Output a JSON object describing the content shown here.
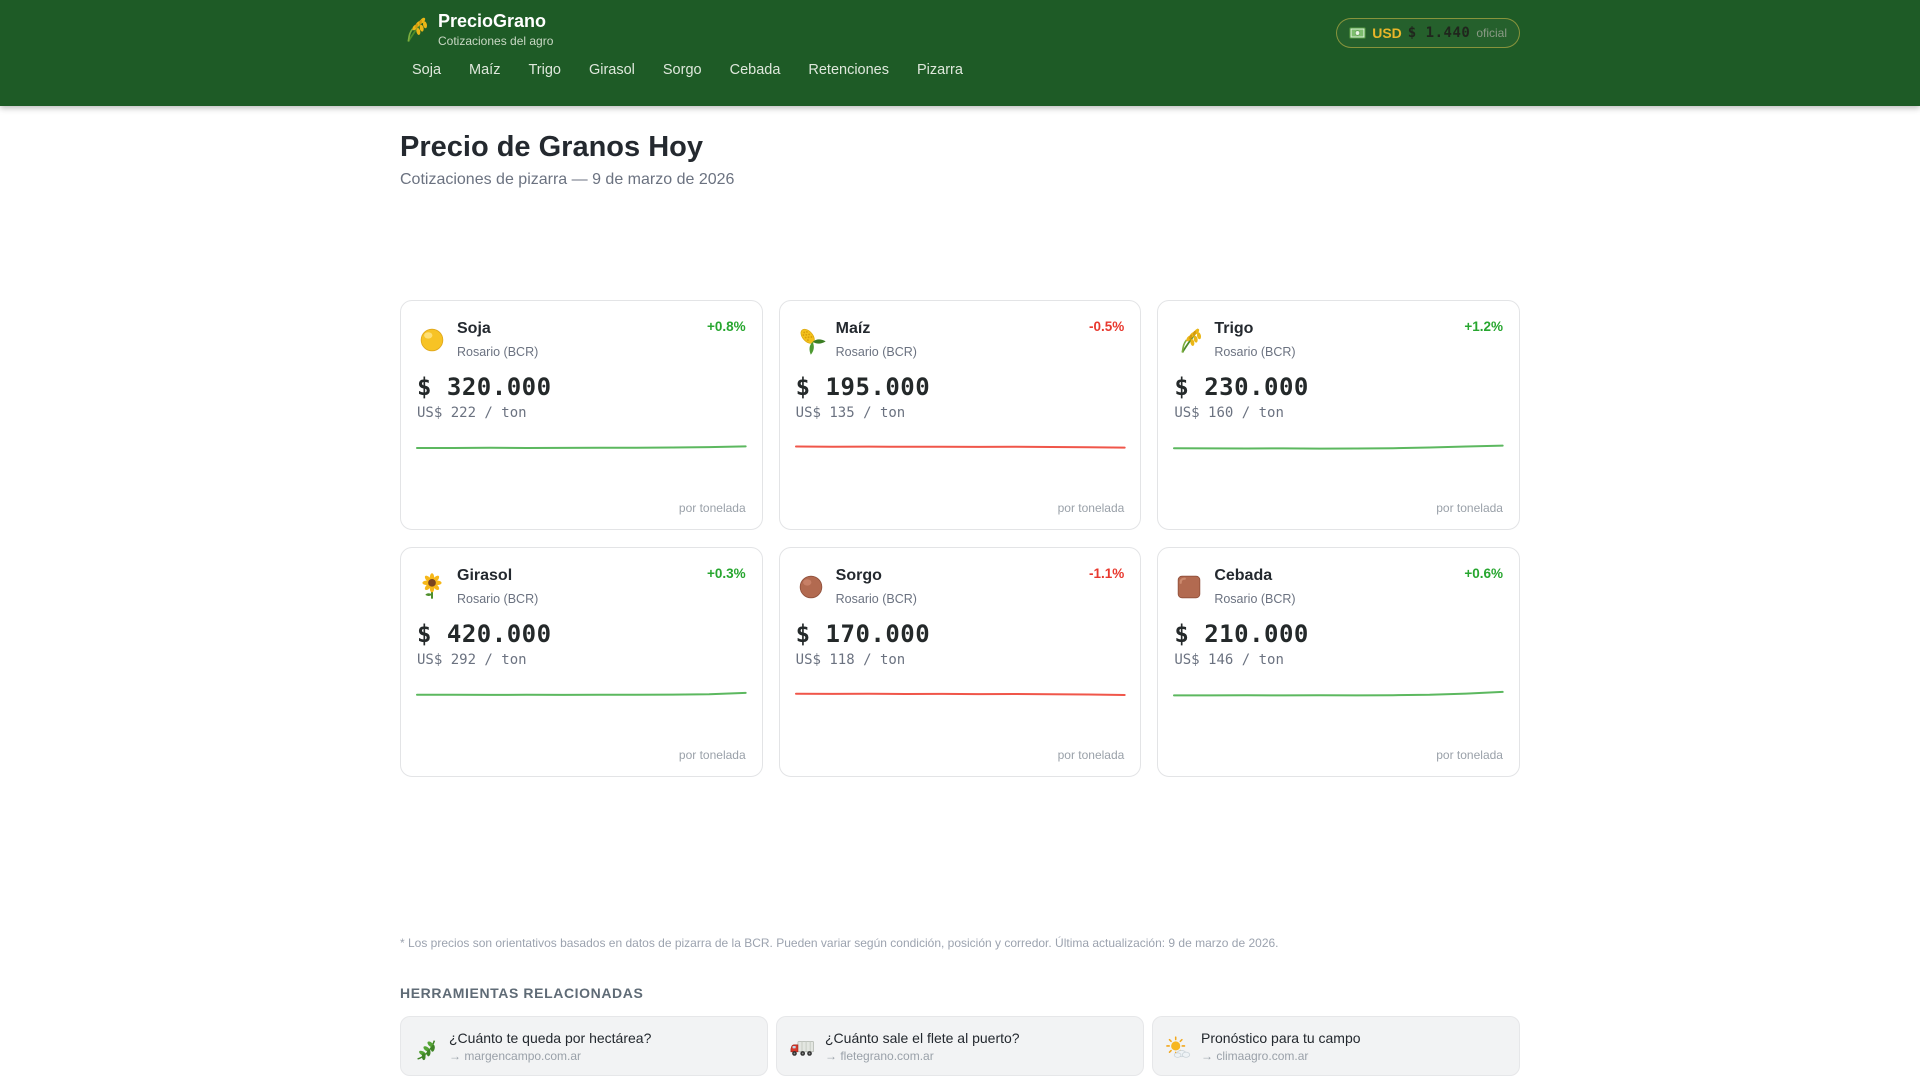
{
  "header": {
    "title": "PrecioGrano",
    "subtitle": "Cotizaciones del agro",
    "nav": [
      "Soja",
      "Maíz",
      "Trigo",
      "Girasol",
      "Sorgo",
      "Cebada",
      "Retenciones",
      "Pizarra"
    ],
    "dollar_badge": {
      "currency": "USD",
      "value": "$ 1.440",
      "tag": "oficial"
    }
  },
  "page": {
    "title": "Precio de Granos Hoy",
    "subtitle": "Cotizaciones de pizarra — 9 de marzo de 2026",
    "disclaimer": "* Los precios son orientativos basados en datos de pizarra de la BCR. Pueden variar según condición, posición y corredor. Última actualización: 9 de marzo de 2026.",
    "tools_heading": "HERRAMIENTAS RELACIONADAS"
  },
  "cards": [
    {
      "name": "Soja",
      "icon": "soja-icon",
      "exchange": "Rosario (BCR)",
      "change": "+0.8%",
      "direction": "up",
      "price": "$ 320.000",
      "usd": "US$ 222 / ton",
      "unit": "por tonelada",
      "spark": [
        21.0,
        21.0,
        20.8,
        21.0,
        20.9,
        20.7,
        20.8,
        20.5,
        20.1,
        19.4
      ]
    },
    {
      "name": "Maíz",
      "icon": "maiz-icon",
      "exchange": "Rosario (BCR)",
      "change": "-0.5%",
      "direction": "down",
      "price": "$ 195.000",
      "usd": "US$ 135 / ton",
      "unit": "por tonelada",
      "spark": [
        19.5,
        19.7,
        19.6,
        19.8,
        19.7,
        19.9,
        19.8,
        20.0,
        20.2,
        20.6
      ]
    },
    {
      "name": "Trigo",
      "icon": "trigo-icon",
      "exchange": "Rosario (BCR)",
      "change": "+1.2%",
      "direction": "up",
      "price": "$ 230.000",
      "usd": "US$ 160 / ton",
      "unit": "por tonelada",
      "spark": [
        21.2,
        21.4,
        21.5,
        21.4,
        21.6,
        21.5,
        21.2,
        20.5,
        19.5,
        18.6
      ]
    },
    {
      "name": "Girasol",
      "icon": "girasol-icon",
      "exchange": "Rosario (BCR)",
      "change": "+0.3%",
      "direction": "up",
      "price": "$ 420.000",
      "usd": "US$ 292 / ton",
      "unit": "por tonelada",
      "spark": [
        20.8,
        20.8,
        20.9,
        20.8,
        20.9,
        20.8,
        20.8,
        20.6,
        20.2,
        18.9
      ]
    },
    {
      "name": "Sorgo",
      "icon": "sorgo-icon",
      "exchange": "Rosario (BCR)",
      "change": "-1.1%",
      "direction": "down",
      "price": "$ 170.000",
      "usd": "US$ 118 / ton",
      "unit": "por tonelada",
      "spark": [
        19.8,
        19.9,
        19.8,
        20.0,
        19.9,
        20.1,
        20.0,
        20.2,
        20.5,
        21.0
      ]
    },
    {
      "name": "Cebada",
      "icon": "cebada-icon",
      "exchange": "Rosario (BCR)",
      "change": "+0.6%",
      "direction": "up",
      "price": "$ 210.000",
      "usd": "US$ 146 / ton",
      "unit": "por tonelada",
      "spark": [
        21.4,
        21.4,
        21.3,
        21.4,
        21.3,
        21.4,
        21.2,
        20.8,
        19.6,
        17.9
      ]
    }
  ],
  "tools": [
    {
      "icon": "herb-icon",
      "title": "¿Cuánto te queda por hectárea?",
      "link": "→ margencampo.com.ar"
    },
    {
      "icon": "truck-icon",
      "title": "¿Cuánto sale el flete al puerto?",
      "link": "→ fletegrano.com.ar"
    },
    {
      "icon": "sun-cloud-icon",
      "title": "Pronóstico para tu campo",
      "link": "→ climaagro.com.ar"
    }
  ],
  "colors": {
    "header_bg": "#1e5b26",
    "accent_green": "#27a62f",
    "accent_red": "#e8382e",
    "spark_up": "#5cb85f",
    "spark_down": "#f0564a",
    "badge_border": "#d8be4a",
    "usd_gold": "#e9b62a"
  }
}
